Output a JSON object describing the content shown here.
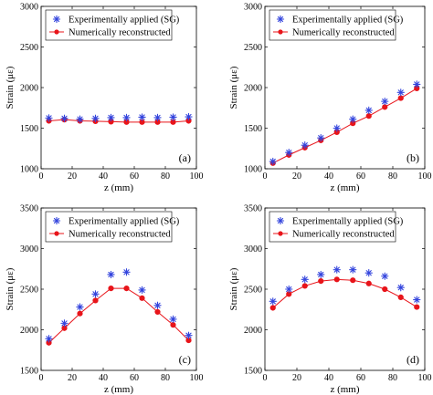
{
  "legend": {
    "experimental": "Experimentally applied (SG)",
    "numerical": "Numerically reconstructed"
  },
  "colors": {
    "experimental": "#3344dd",
    "numerical": "#e8141a",
    "axis": "#000000"
  },
  "chart_data": [
    {
      "type": "scatter",
      "panel": "(a)",
      "xlabel": "z (mm)",
      "ylabel": "Strain (με)",
      "xlim": [
        0,
        100
      ],
      "ylim": [
        1000,
        3000
      ],
      "xticks": [
        0,
        20,
        40,
        60,
        80,
        100
      ],
      "yticks": [
        1000,
        1500,
        2000,
        2500,
        3000
      ],
      "legend_position": "top-left",
      "series": [
        {
          "name": "Experimentally applied (SG)",
          "marker": "asterisk",
          "x": [
            5,
            15,
            25,
            35,
            45,
            55,
            65,
            75,
            85,
            95
          ],
          "y": [
            1625,
            1620,
            1610,
            1620,
            1630,
            1630,
            1635,
            1630,
            1635,
            1640
          ]
        },
        {
          "name": "Numerically reconstructed",
          "marker": "circle-line",
          "x": [
            5,
            15,
            25,
            35,
            45,
            55,
            65,
            75,
            85,
            95
          ],
          "y": [
            1590,
            1605,
            1590,
            1585,
            1580,
            1575,
            1575,
            1575,
            1575,
            1590
          ]
        }
      ]
    },
    {
      "type": "scatter",
      "panel": "(b)",
      "xlabel": "z (mm)",
      "ylabel": "Strain (με)",
      "xlim": [
        0,
        100
      ],
      "ylim": [
        1000,
        3000
      ],
      "xticks": [
        0,
        20,
        40,
        60,
        80,
        100
      ],
      "yticks": [
        1000,
        1500,
        2000,
        2500,
        3000
      ],
      "legend_position": "top-left",
      "series": [
        {
          "name": "Experimentally applied (SG)",
          "marker": "asterisk",
          "x": [
            5,
            15,
            25,
            35,
            45,
            55,
            65,
            75,
            85,
            95
          ],
          "y": [
            1090,
            1200,
            1290,
            1380,
            1500,
            1610,
            1720,
            1830,
            1940,
            2040
          ]
        },
        {
          "name": "Numerically reconstructed",
          "marker": "circle-line",
          "x": [
            5,
            15,
            25,
            35,
            45,
            55,
            65,
            75,
            85,
            95
          ],
          "y": [
            1070,
            1170,
            1260,
            1350,
            1450,
            1560,
            1650,
            1760,
            1870,
            1990
          ]
        }
      ]
    },
    {
      "type": "scatter",
      "panel": "(c)",
      "xlabel": "z (mm)",
      "ylabel": "Strain (με)",
      "xlim": [
        0,
        100
      ],
      "ylim": [
        1500,
        3500
      ],
      "xticks": [
        0,
        20,
        40,
        60,
        80,
        100
      ],
      "yticks": [
        1500,
        2000,
        2500,
        3000,
        3500
      ],
      "legend_position": "top-left",
      "series": [
        {
          "name": "Experimentally applied (SG)",
          "marker": "asterisk",
          "x": [
            5,
            15,
            25,
            35,
            45,
            55,
            65,
            75,
            85,
            95
          ],
          "y": [
            1890,
            2080,
            2280,
            2440,
            2680,
            2710,
            2490,
            2300,
            2130,
            1930
          ]
        },
        {
          "name": "Numerically reconstructed",
          "marker": "circle-line",
          "x": [
            5,
            15,
            25,
            35,
            45,
            55,
            65,
            75,
            85,
            95
          ],
          "y": [
            1840,
            2020,
            2200,
            2360,
            2510,
            2510,
            2390,
            2220,
            2060,
            1870
          ]
        }
      ]
    },
    {
      "type": "scatter",
      "panel": "(d)",
      "xlabel": "z (mm)",
      "ylabel": "Strain (με)",
      "xlim": [
        0,
        100
      ],
      "ylim": [
        1500,
        3500
      ],
      "xticks": [
        0,
        20,
        40,
        60,
        80,
        100
      ],
      "yticks": [
        1500,
        2000,
        2500,
        3000,
        3500
      ],
      "legend_position": "top-left",
      "series": [
        {
          "name": "Experimentally applied (SG)",
          "marker": "asterisk",
          "x": [
            5,
            15,
            25,
            35,
            45,
            55,
            65,
            75,
            85,
            95
          ],
          "y": [
            2350,
            2500,
            2620,
            2680,
            2740,
            2740,
            2700,
            2660,
            2520,
            2370
          ]
        },
        {
          "name": "Numerically reconstructed",
          "marker": "circle-line",
          "x": [
            5,
            15,
            25,
            35,
            45,
            55,
            65,
            75,
            85,
            95
          ],
          "y": [
            2270,
            2440,
            2540,
            2600,
            2620,
            2610,
            2570,
            2500,
            2400,
            2280
          ]
        }
      ]
    }
  ]
}
